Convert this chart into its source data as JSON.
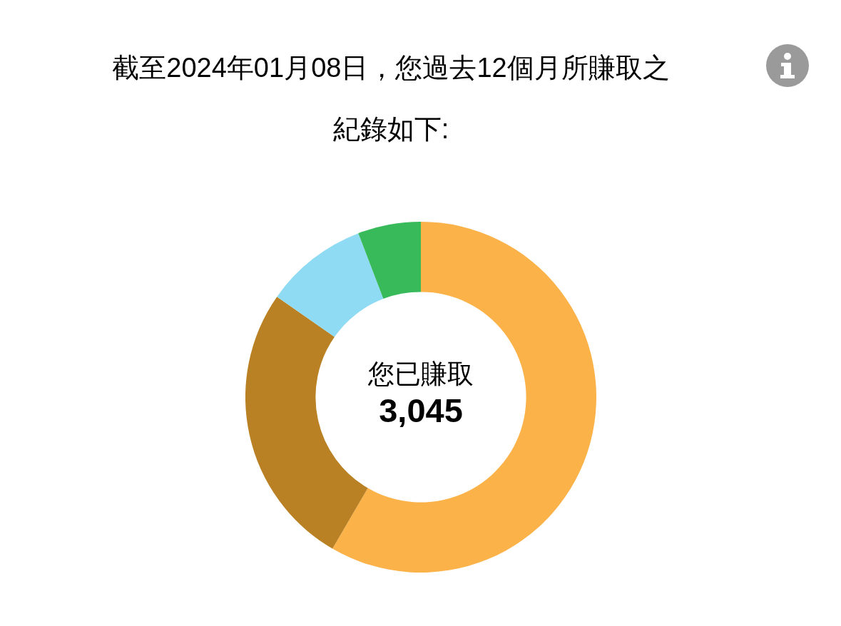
{
  "chart_data": {
    "type": "donut",
    "title": "截至2024年01月08日，您過去12個月所賺取之紀錄如下:",
    "categories": [
      null,
      null,
      null,
      null
    ],
    "values": [
      58.4,
      26.3,
      9.5,
      5.8
    ],
    "colors": [
      "#fbb249",
      "#b98124",
      "#8fdbf3",
      "#38ba5b"
    ],
    "annotations": [
      "您已賺取",
      "3,045"
    ],
    "legend": false
  }
}
